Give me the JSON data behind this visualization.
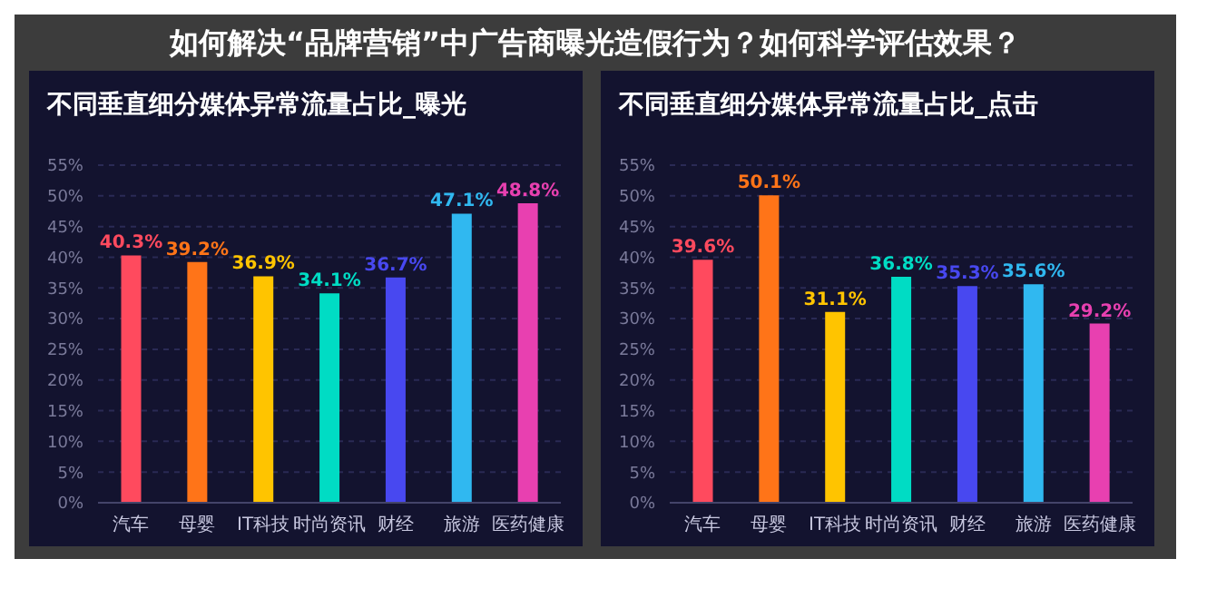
{
  "chart_data": [
    {
      "type": "bar",
      "title": "不同垂直细分媒体异常流量占比_曝光",
      "annotations": [
        "如何解决“品牌营销”中广告商曝光造假行为？如何科学评估效果？"
      ],
      "categories": [
        "汽车",
        "母婴",
        "IT科技",
        "时尚资讯",
        "财经",
        "旅游",
        "医药健康"
      ],
      "values": [
        40.3,
        39.2,
        36.9,
        34.1,
        36.7,
        47.1,
        48.8
      ],
      "colors": [
        "#ff4a5e",
        "#ff7418",
        "#ffc400",
        "#00dcc4",
        "#4848f0",
        "#30b8f0",
        "#e840b0"
      ],
      "value_labels": [
        "40.3%",
        "39.2%",
        "36.9%",
        "34.1%",
        "36.7%",
        "47.1%",
        "48.8%"
      ],
      "ylim": [
        0,
        55
      ],
      "yticks": [
        {
          "value": 0,
          "label": "0%"
        },
        {
          "value": 5,
          "label": "5%"
        },
        {
          "value": 10,
          "label": "10%"
        },
        {
          "value": 15,
          "label": "15%"
        },
        {
          "value": 20,
          "label": "20%"
        },
        {
          "value": 25,
          "label": "25%"
        },
        {
          "value": 30,
          "label": "30%"
        },
        {
          "value": 35,
          "label": "35%"
        },
        {
          "value": 40,
          "label": "40%"
        },
        {
          "value": 45,
          "label": "45%"
        },
        {
          "value": 50,
          "label": "50%"
        },
        {
          "value": 55,
          "label": "55%"
        }
      ],
      "grid": "y"
    },
    {
      "type": "bar",
      "title": "不同垂直细分媒体异常流量占比_点击",
      "categories": [
        "汽车",
        "母婴",
        "IT科技",
        "时尚资讯",
        "财经",
        "旅游",
        "医药健康"
      ],
      "values": [
        39.6,
        50.1,
        31.1,
        36.8,
        35.3,
        35.6,
        29.2
      ],
      "colors": [
        "#ff4a5e",
        "#ff7418",
        "#ffc400",
        "#00dcc4",
        "#4848f0",
        "#30b8f0",
        "#e840b0"
      ],
      "value_labels": [
        "39.6%",
        "50.1%",
        "31.1%",
        "36.8%",
        "35.3%",
        "35.6%",
        "29.2%"
      ],
      "ylim": [
        0,
        55
      ],
      "yticks": [
        {
          "value": 0,
          "label": "0%"
        },
        {
          "value": 5,
          "label": "5%"
        },
        {
          "value": 10,
          "label": "10%"
        },
        {
          "value": 15,
          "label": "15%"
        },
        {
          "value": 20,
          "label": "20%"
        },
        {
          "value": 25,
          "label": "25%"
        },
        {
          "value": 30,
          "label": "30%"
        },
        {
          "value": 35,
          "label": "35%"
        },
        {
          "value": 40,
          "label": "40%"
        },
        {
          "value": 45,
          "label": "45%"
        },
        {
          "value": 50,
          "label": "50%"
        },
        {
          "value": 55,
          "label": "55%"
        }
      ],
      "grid": "y"
    }
  ]
}
